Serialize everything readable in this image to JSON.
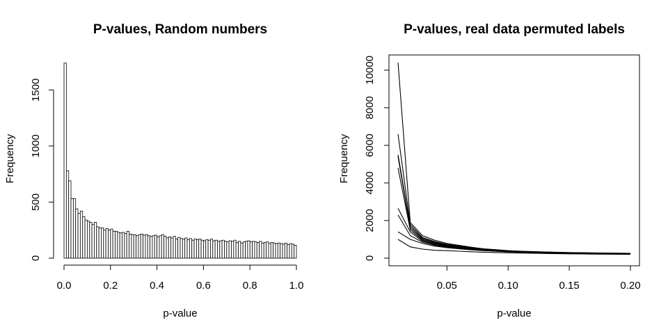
{
  "chart_data": [
    {
      "type": "bar",
      "title": "P-values, Random numbers",
      "xlabel": "p-value",
      "ylabel": "Frequency",
      "xlim": [
        0,
        1
      ],
      "ylim": [
        0,
        1750
      ],
      "xticks": [
        "0.0",
        "0.2",
        "0.4",
        "0.6",
        "0.8",
        "1.0"
      ],
      "yticks": [
        "0",
        "500",
        "1000",
        "1500"
      ],
      "bin_width": 0.01,
      "values": [
        1740,
        780,
        690,
        530,
        530,
        440,
        400,
        420,
        370,
        340,
        330,
        320,
        300,
        320,
        280,
        270,
        270,
        250,
        265,
        250,
        260,
        240,
        240,
        230,
        225,
        230,
        220,
        240,
        215,
        210,
        210,
        200,
        210,
        215,
        205,
        210,
        200,
        195,
        200,
        205,
        190,
        200,
        210,
        195,
        180,
        190,
        180,
        195,
        170,
        185,
        175,
        170,
        180,
        165,
        175,
        160,
        170,
        165,
        170,
        160,
        155,
        165,
        160,
        170,
        155,
        160,
        150,
        155,
        160,
        150,
        145,
        155,
        150,
        160,
        140,
        150,
        135,
        145,
        150,
        155,
        145,
        150,
        145,
        140,
        150,
        135,
        140,
        145,
        130,
        140,
        135,
        130,
        135,
        130,
        125,
        135,
        120,
        130,
        125,
        115
      ]
    },
    {
      "type": "line",
      "title": "P-values, real data permuted labels",
      "xlabel": "p-value",
      "ylabel": "Frequency",
      "xlim": [
        0.01,
        0.2
      ],
      "ylim": [
        0,
        10400
      ],
      "xticks": [
        "0.05",
        "0.10",
        "0.15",
        "0.20"
      ],
      "yticks": [
        "0",
        "2000",
        "4000",
        "6000",
        "8000",
        "10000"
      ],
      "x": [
        0.01,
        0.02,
        0.03,
        0.04,
        0.05,
        0.06,
        0.07,
        0.08,
        0.09,
        0.1,
        0.11,
        0.12,
        0.13,
        0.14,
        0.15,
        0.16,
        0.17,
        0.18,
        0.19,
        0.2
      ],
      "series": [
        {
          "values": [
            10400,
            1900,
            1200,
            950,
            780,
            680,
            580,
            500,
            450,
            400,
            370,
            350,
            330,
            310,
            300,
            290,
            280,
            270,
            265,
            260
          ]
        },
        {
          "values": [
            6600,
            1800,
            1100,
            880,
            740,
            640,
            560,
            490,
            440,
            395,
            365,
            345,
            325,
            310,
            295,
            285,
            275,
            265,
            260,
            250
          ]
        },
        {
          "values": [
            5500,
            1700,
            1050,
            840,
            700,
            610,
            530,
            470,
            420,
            380,
            355,
            335,
            315,
            300,
            290,
            280,
            270,
            260,
            255,
            245
          ]
        },
        {
          "values": [
            5400,
            1600,
            1000,
            800,
            680,
            590,
            510,
            455,
            410,
            370,
            345,
            330,
            310,
            295,
            285,
            275,
            265,
            255,
            250,
            240
          ]
        },
        {
          "values": [
            4800,
            1500,
            950,
            770,
            650,
            570,
            500,
            445,
            400,
            365,
            340,
            320,
            305,
            290,
            280,
            270,
            260,
            250,
            245,
            238
          ]
        },
        {
          "values": [
            2650,
            1400,
            900,
            730,
            620,
            545,
            480,
            430,
            390,
            355,
            335,
            315,
            300,
            285,
            275,
            265,
            255,
            248,
            242,
            235
          ]
        },
        {
          "values": [
            2300,
            1200,
            850,
            690,
            590,
            520,
            460,
            415,
            375,
            345,
            325,
            305,
            290,
            280,
            270,
            260,
            250,
            244,
            238,
            230
          ]
        },
        {
          "values": [
            1400,
            1000,
            780,
            640,
            560,
            495,
            440,
            400,
            365,
            335,
            315,
            298,
            285,
            272,
            262,
            252,
            244,
            237,
            232,
            225
          ]
        },
        {
          "values": [
            1000,
            600,
            480,
            420,
            400,
            370,
            340,
            320,
            300,
            285,
            270,
            258,
            248,
            238,
            230,
            222,
            215,
            210,
            205,
            200
          ]
        }
      ]
    }
  ]
}
